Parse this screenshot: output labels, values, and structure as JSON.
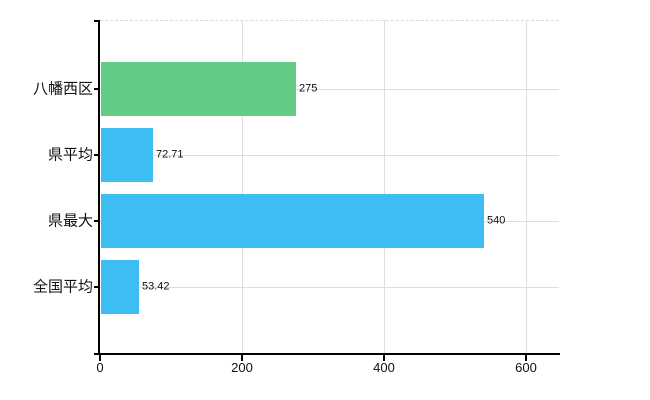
{
  "chart_data": {
    "type": "bar",
    "orientation": "horizontal",
    "title": "",
    "xlabel": "",
    "ylabel": "",
    "categories": [
      "八幡西区",
      "県平均",
      "県最大",
      "全国平均"
    ],
    "values": [
      275,
      72.71,
      540,
      53.42
    ],
    "value_labels": [
      "275",
      "72.71",
      "540",
      "53.42"
    ],
    "bar_colors": [
      "#63CB84",
      "#3DBDF2",
      "#3DBDF2",
      "#3DBDF2"
    ],
    "x_ticks": [
      0,
      200,
      400,
      600
    ],
    "x_tick_labels": [
      "0",
      "200",
      "400",
      "600"
    ],
    "xlim": [
      0,
      646
    ],
    "grid": true,
    "grid_horizontal_at_category_centers": true,
    "legend": false,
    "top_border_style": "dashed"
  },
  "colors": {
    "background": "#FFFFFF",
    "axis": "#000000",
    "gridline": "#DEDEDE",
    "top_border": "#D9D9D9",
    "text": "#111111",
    "green_bar": "#63CB84",
    "blue_bar": "#3DBDF2"
  }
}
